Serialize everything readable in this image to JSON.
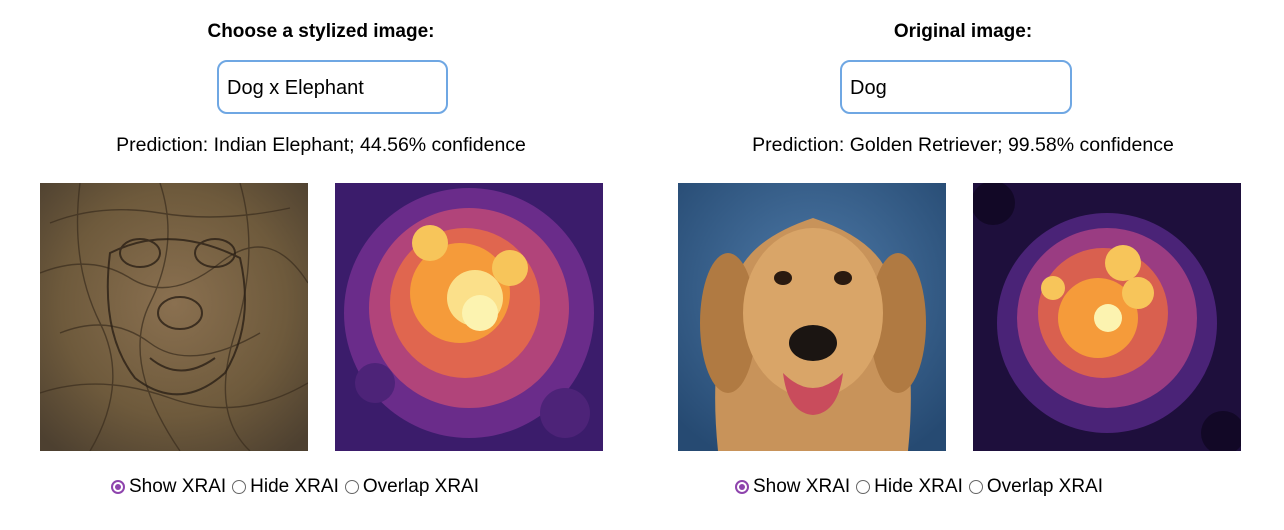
{
  "left": {
    "heading": "Choose a stylized image:",
    "selected": "Dog x Elephant",
    "prediction": "Prediction: Indian Elephant; 44.56% confidence",
    "images": [
      "stylized dog x elephant photo",
      "XRAI heatmap"
    ],
    "radio": {
      "options": [
        "Show XRAI",
        "Hide XRAI",
        "Overlap XRAI"
      ],
      "selected": "Show XRAI"
    }
  },
  "right": {
    "heading": "Original image:",
    "selected": "Dog",
    "prediction": "Prediction: Golden Retriever; 99.58% confidence",
    "images": [
      "golden retriever photo",
      "XRAI heatmap"
    ],
    "radio": {
      "options": [
        "Show XRAI",
        "Hide XRAI",
        "Overlap XRAI"
      ],
      "selected": "Show XRAI"
    }
  },
  "colors": {
    "accent": "#8e44ad",
    "select_border": "#6fa7e3"
  }
}
